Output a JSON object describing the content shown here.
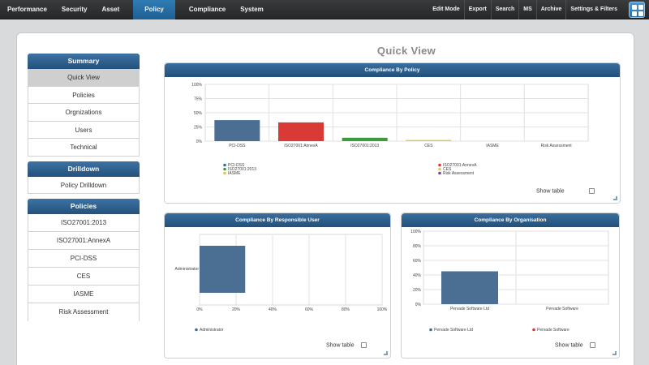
{
  "nav": {
    "tabs": [
      {
        "label": "Performance"
      },
      {
        "label": "Security"
      },
      {
        "label": "Asset"
      },
      {
        "label": "Policy"
      },
      {
        "label": "Compliance"
      },
      {
        "label": "System"
      }
    ],
    "active_tab": "Policy",
    "right_items": [
      {
        "label": "Edit Mode"
      },
      {
        "label": "Export"
      },
      {
        "label": "Search"
      },
      {
        "label": "MS"
      },
      {
        "label": "Archive"
      },
      {
        "label": "Settings & Filters"
      }
    ],
    "grid_icon": "apps-grid-icon"
  },
  "page": {
    "title": "Quick View"
  },
  "sidebar": {
    "summary": {
      "title": "Summary",
      "items": [
        {
          "label": "Quick View"
        },
        {
          "label": "Policies"
        },
        {
          "label": "Orgnizations"
        },
        {
          "label": "Users"
        },
        {
          "label": "Technical"
        }
      ]
    },
    "drilldown": {
      "title": "Drilldown",
      "items": [
        {
          "label": "Policy Drilldown"
        }
      ]
    },
    "policies": {
      "title": "Policies",
      "items": [
        {
          "label": "ISO27001:2013"
        },
        {
          "label": "ISO27001:AnnexA"
        },
        {
          "label": "PCI-DSS"
        },
        {
          "label": "CES"
        },
        {
          "label": "IASME"
        },
        {
          "label": "Risk Assessment"
        }
      ]
    }
  },
  "colors": {
    "accent": "#2a6fa8",
    "blue": "#4a6f93",
    "red": "#d93a35",
    "green": "#3e9a3e",
    "yellow": "#e4c64a",
    "purple": "#6d4b8a"
  },
  "show_table_label": "Show table",
  "chart_data": [
    {
      "id": "by_policy",
      "type": "bar",
      "title": "Compliance By Policy",
      "categories": [
        "PCI-DSS",
        "ISO27001:AnnexA",
        "ISO27001:2013",
        "CES",
        "IASME",
        "Risk Assessment"
      ],
      "values": [
        37,
        33,
        6,
        2,
        0,
        0
      ],
      "colors": [
        "#4a6f93",
        "#d93a35",
        "#3e9a3e",
        "#e4c64a",
        "#4a6f93",
        "#4a6f93"
      ],
      "ylim": [
        0,
        100
      ],
      "yticks": [
        "0%",
        "25%",
        "50%",
        "75%",
        "100%"
      ],
      "grid": true,
      "legend": {
        "col1": [
          {
            "label": "PCI-DSS",
            "color": "#3a6e9d"
          },
          {
            "label": "ISO27001:2013",
            "color": "#3e9a3e"
          },
          {
            "label": "IASME",
            "color": "#e4c64a"
          }
        ],
        "col2": [
          {
            "label": "ISO27001:AnnexA",
            "color": "#d93a35"
          },
          {
            "label": "CES",
            "color": "#e4c64a"
          },
          {
            "label": "Risk Assessment",
            "color": "#6d4b8a"
          }
        ]
      }
    },
    {
      "id": "by_user",
      "type": "bar",
      "orientation": "horizontal",
      "title": "Compliance By Responsible User",
      "categories": [
        "Administrator"
      ],
      "values": [
        25
      ],
      "colors": [
        "#4a6f93"
      ],
      "xlim": [
        0,
        100
      ],
      "xticks": [
        "0%",
        "20%",
        "40%",
        "60%",
        "80%",
        "100%"
      ],
      "grid": true,
      "legend": [
        {
          "label": "Administrator",
          "color": "#3a6e9d"
        }
      ]
    },
    {
      "id": "by_org",
      "type": "bar",
      "title": "Compliance By Organisation",
      "categories": [
        "Pervade Software Ltd",
        "Pervade Software"
      ],
      "values": [
        45,
        0
      ],
      "colors": [
        "#4a6f93",
        "#4a6f93"
      ],
      "ylim": [
        0,
        100
      ],
      "yticks": [
        "0%",
        "20%",
        "40%",
        "60%",
        "80%",
        "100%"
      ],
      "grid": true,
      "legend": [
        {
          "label": "Pervade Software Ltd",
          "color": "#3a6e9d"
        },
        {
          "label": "Pervade Software",
          "color": "#d93a35"
        }
      ]
    }
  ]
}
